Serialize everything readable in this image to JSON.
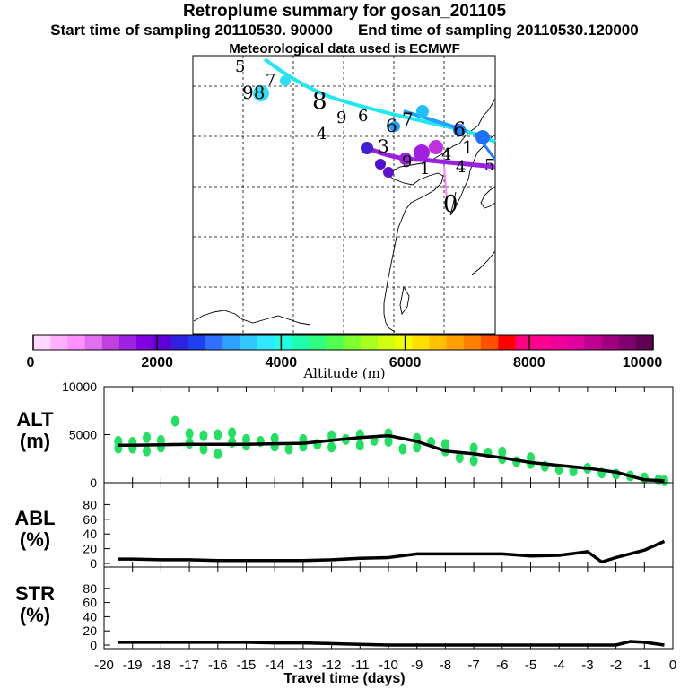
{
  "header": {
    "title": "Retroplume summary for gosan_201105",
    "start_label": "Start time of sampling 20110530. 90000",
    "end_label": "End time of sampling 20110530.120000",
    "met_label": "Meteorological data used is ECMWF"
  },
  "map": {
    "day_markers": [
      "5",
      "7",
      "98",
      "8",
      "9",
      "6",
      "4",
      "3",
      "6",
      "7",
      "6",
      "1",
      "5",
      "9",
      "4",
      "1",
      "4",
      "0"
    ]
  },
  "colorbar": {
    "tick_labels": [
      "0",
      "2000",
      "4000",
      "6000",
      "8000",
      "10000"
    ],
    "label": "Altitude (m)",
    "colors": [
      "#ffd8ff",
      "#ffb0ff",
      "#ff90ff",
      "#e070f0",
      "#c040e0",
      "#a020e0",
      "#8000e0",
      "#6000d8",
      "#3020e0",
      "#2040f0",
      "#3070ff",
      "#30a0ff",
      "#30c8ff",
      "#30e8ff",
      "#20ffe0",
      "#20ffb0",
      "#30ff80",
      "#50ff50",
      "#80ff30",
      "#a8ff20",
      "#d0ff10",
      "#f0ff00",
      "#ffe000",
      "#ffc000",
      "#ffa000",
      "#ff8000",
      "#ff5000",
      "#ff0000",
      "#ff0080",
      "#ff0090",
      "#f00098",
      "#e000a0",
      "#c00090",
      "#a00080",
      "#800070",
      "#600050"
    ]
  },
  "panels": {
    "alt": {
      "label_line1": "ALT",
      "label_line2": "(m)"
    },
    "abl": {
      "label_line1": "ABL",
      "label_line2": "(%)"
    },
    "str": {
      "label_line1": "STR",
      "label_line2": "(%)"
    }
  },
  "xaxis": {
    "label": "Travel time (days)",
    "ticks": [
      "-20",
      "-19",
      "-18",
      "-17",
      "-16",
      "-15",
      "-14",
      "-13",
      "-12",
      "-11",
      "-10",
      "-9",
      "-8",
      "-7",
      "-6",
      "-5",
      "-4",
      "-3",
      "-2",
      "-1",
      "0"
    ]
  },
  "chart_data": [
    {
      "type": "line",
      "name": "ALT",
      "ylabel": "ALT (m)",
      "ylim": [
        0,
        10000
      ],
      "yticks": [
        "10000",
        "5000",
        "0"
      ],
      "x": [
        -19.5,
        -19,
        -18,
        -17,
        -16,
        -15,
        -14,
        -13,
        -12,
        -11,
        -10,
        -9,
        -8,
        -7,
        -6,
        -5,
        -4,
        -3,
        -2,
        -1,
        -0.3
      ],
      "values": [
        3900,
        3900,
        3950,
        4000,
        4000,
        4000,
        4050,
        4100,
        4400,
        4700,
        4900,
        4300,
        3300,
        3000,
        2600,
        2100,
        1800,
        1500,
        1100,
        300,
        200
      ],
      "scatter_color": "#22e060",
      "scatter_x": [
        -19.5,
        -19.5,
        -19,
        -19,
        -18.5,
        -18.5,
        -18,
        -18,
        -17.5,
        -17,
        -17,
        -16.5,
        -16.5,
        -16,
        -16,
        -15.5,
        -15.5,
        -15,
        -15,
        -14.5,
        -14,
        -14,
        -13.5,
        -13,
        -13,
        -12.5,
        -12,
        -12,
        -11.5,
        -11,
        -11,
        -10.5,
        -10,
        -10,
        -9.5,
        -9,
        -9,
        -8.5,
        -8,
        -8,
        -7.5,
        -7,
        -7,
        -6.5,
        -6,
        -6,
        -5.5,
        -5,
        -5,
        -4.5,
        -4,
        -3.5,
        -3,
        -2.5,
        -2,
        -1.5,
        -1,
        -0.5,
        -0.3
      ],
      "scatter_y": [
        3600,
        4300,
        3600,
        4200,
        3300,
        4700,
        3700,
        4400,
        6400,
        4100,
        5100,
        3500,
        4900,
        3000,
        5000,
        4200,
        5200,
        3900,
        4500,
        4300,
        3800,
        4600,
        3500,
        3800,
        4500,
        4000,
        3700,
        4900,
        4500,
        3900,
        5000,
        4400,
        4300,
        5100,
        3500,
        4600,
        3700,
        4200,
        3300,
        4000,
        2600,
        3600,
        2300,
        3100,
        2500,
        3200,
        2200,
        2000,
        2600,
        1700,
        1400,
        1200,
        1500,
        1000,
        900,
        700,
        500,
        300,
        200
      ]
    },
    {
      "type": "line",
      "name": "ABL",
      "ylabel": "ABL (%)",
      "ylim": [
        0,
        100
      ],
      "yticks": [
        "80",
        "60",
        "40",
        "20",
        "0"
      ],
      "x": [
        -19.5,
        -19,
        -18,
        -17,
        -16,
        -15,
        -14,
        -13,
        -12,
        -11,
        -10,
        -9,
        -8,
        -7,
        -6,
        -5,
        -4,
        -3,
        -2.5,
        -2,
        -1,
        -0.3
      ],
      "values": [
        6,
        6,
        5,
        5,
        4,
        4,
        4,
        4,
        5,
        7,
        8,
        13,
        13,
        13,
        13,
        10,
        11,
        16,
        2,
        8,
        18,
        30
      ]
    },
    {
      "type": "line",
      "name": "STR",
      "ylabel": "STR (%)",
      "ylim": [
        0,
        100
      ],
      "yticks": [
        "80",
        "60",
        "40",
        "20",
        "0"
      ],
      "x": [
        -19.5,
        -19,
        -18,
        -17,
        -16,
        -15,
        -14,
        -13,
        -12,
        -11,
        -10,
        -9,
        -8,
        -7,
        -6,
        -5,
        -4,
        -3,
        -2,
        -1.5,
        -1,
        -0.3
      ],
      "values": [
        4,
        4,
        4,
        4,
        4,
        4,
        3,
        3,
        2,
        1,
        0,
        0,
        0,
        0,
        0,
        0,
        0,
        0,
        0,
        5,
        4,
        0
      ]
    }
  ]
}
